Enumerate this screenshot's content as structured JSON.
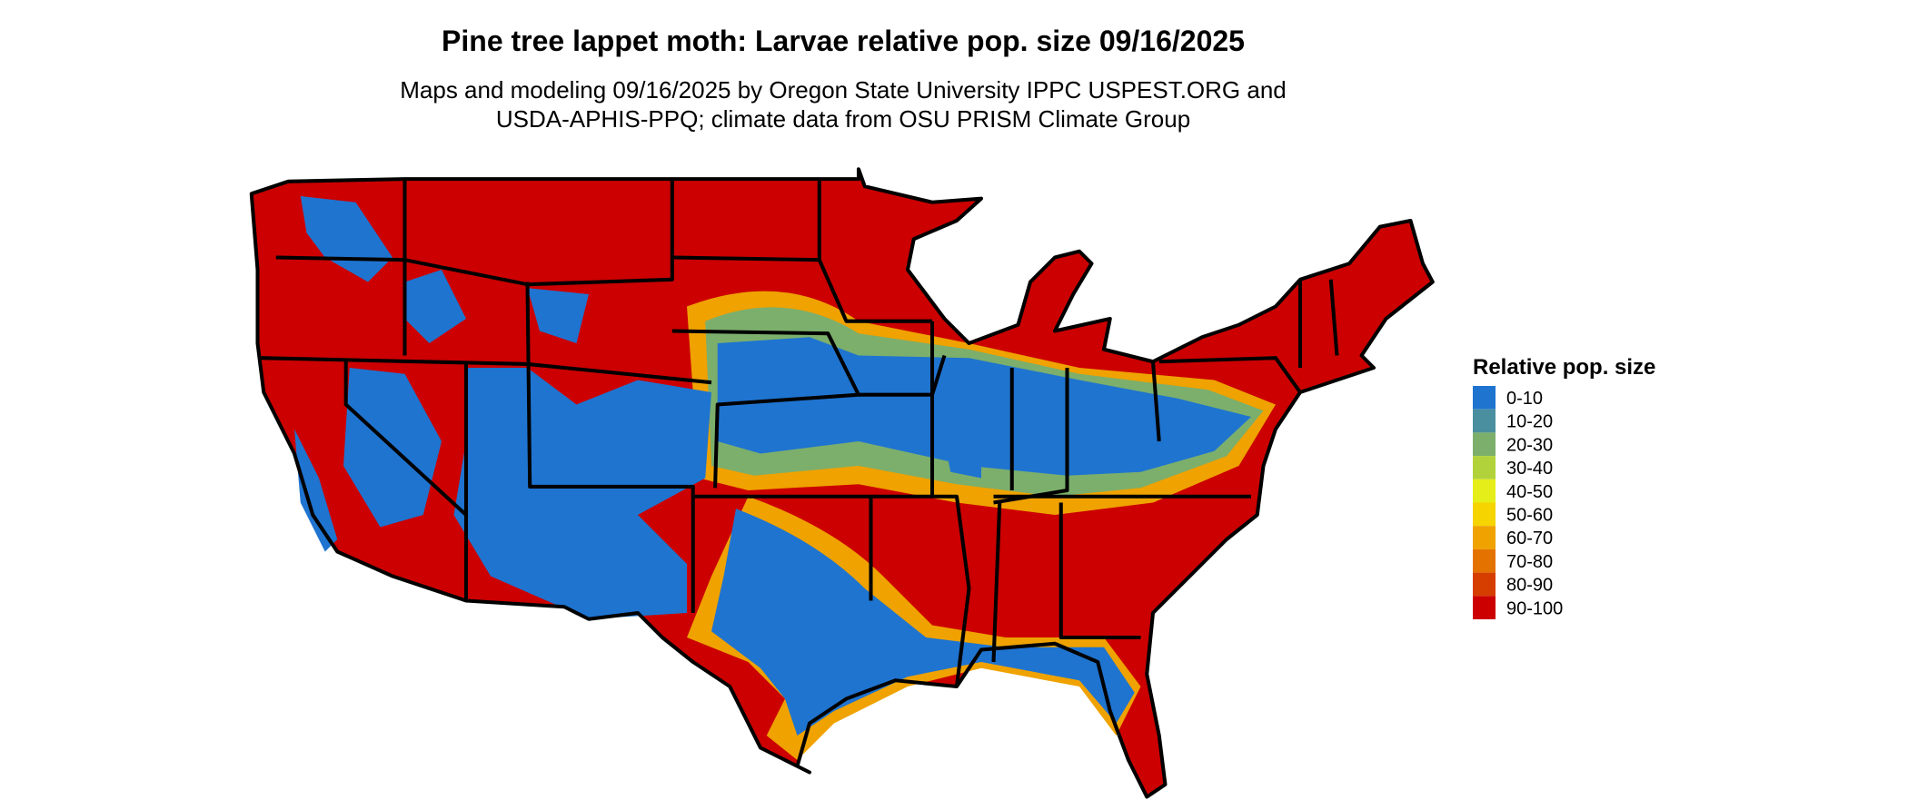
{
  "header": {
    "title": "Pine tree lappet moth: Larvae relative pop. size 09/16/2025",
    "subtitle_lines": [
      "Maps and modeling 09/16/2025 by Oregon State University IPPC USPEST.ORG and",
      "USDA-APHIS-PPQ; climate data from OSU PRISM Climate Group"
    ]
  },
  "legend": {
    "title": "Relative pop. size",
    "items": [
      {
        "label": "0-10",
        "color": "#1f74d0"
      },
      {
        "label": "10-20",
        "color": "#4a8fa0"
      },
      {
        "label": "20-30",
        "color": "#7caf6c"
      },
      {
        "label": "30-40",
        "color": "#b2d23c"
      },
      {
        "label": "40-50",
        "color": "#e6ee1a"
      },
      {
        "label": "50-60",
        "color": "#f5d400"
      },
      {
        "label": "60-70",
        "color": "#efa200"
      },
      {
        "label": "70-80",
        "color": "#e47200"
      },
      {
        "label": "80-90",
        "color": "#d63e00"
      },
      {
        "label": "90-100",
        "color": "#cc0000"
      }
    ]
  }
}
